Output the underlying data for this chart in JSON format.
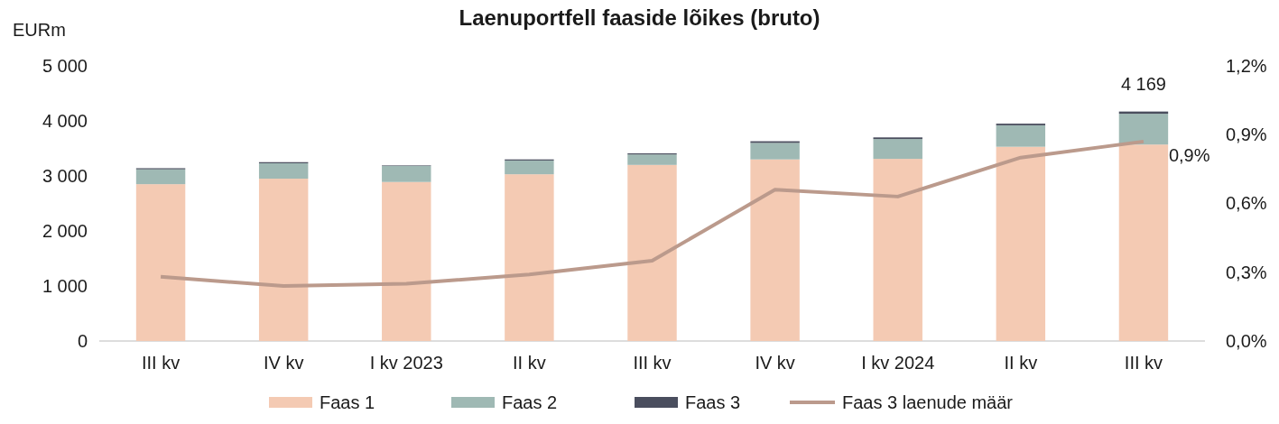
{
  "chart_data": {
    "type": "bar",
    "title": "Laenuportfell faaside lõikes (bruto)",
    "ylabel": "EURm",
    "categories": [
      "III kv",
      "IV kv",
      "I kv 2023",
      "II kv",
      "III kv",
      "IV kv",
      "I kv 2024",
      "II kv",
      "III kv"
    ],
    "stacked": true,
    "legend": "bottom",
    "grid": false,
    "ylim": [
      0,
      5000
    ],
    "yticks": [
      {
        "value": 0,
        "label": "0"
      },
      {
        "value": 1000,
        "label": "1 000"
      },
      {
        "value": 2000,
        "label": "2 000"
      },
      {
        "value": 3000,
        "label": "3 000"
      },
      {
        "value": 4000,
        "label": "4 000"
      },
      {
        "value": 5000,
        "label": "5 000"
      }
    ],
    "y2lim": [
      0,
      1.2
    ],
    "y2ticks": [
      {
        "value": 0,
        "label": "0,0%"
      },
      {
        "value": 0.3,
        "label": "0,3%"
      },
      {
        "value": 0.6,
        "label": "0,6%"
      },
      {
        "value": 0.9,
        "label": "0,9%"
      },
      {
        "value": 1.2,
        "label": "1,2%"
      }
    ],
    "totals": [
      null,
      null,
      null,
      null,
      null,
      null,
      null,
      null,
      "4 169"
    ],
    "series": [
      {
        "name": "Faas 1",
        "color": "#f4cab3",
        "values": [
          2850,
          2950,
          2890,
          3030,
          3200,
          3300,
          3310,
          3530,
          3570
        ]
      },
      {
        "name": "Faas 2",
        "color": "#9fb9b4",
        "values": [
          270,
          280,
          290,
          250,
          190,
          300,
          360,
          390,
          560
        ]
      },
      {
        "name": "Faas 3",
        "color": "#4a4e5e",
        "values": [
          20,
          20,
          10,
          20,
          20,
          30,
          30,
          30,
          40
        ]
      },
      {
        "name": "Faas 3 laenude määr",
        "type": "line",
        "axis": "y2",
        "color": "#bb9a8c",
        "line_style": "solid",
        "marker": "none",
        "values": [
          0.28,
          0.24,
          0.25,
          0.29,
          0.35,
          0.66,
          0.63,
          0.8,
          0.87
        ],
        "value_labels": [
          null,
          null,
          null,
          null,
          null,
          null,
          null,
          null,
          "0,9%"
        ]
      }
    ]
  }
}
